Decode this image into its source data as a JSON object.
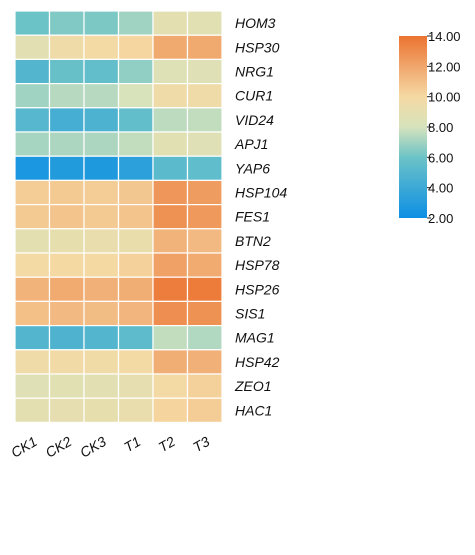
{
  "chart_data": {
    "type": "heatmap",
    "title": "",
    "xlabel": "",
    "ylabel": "",
    "columns": [
      "CK1",
      "CK2",
      "CK3",
      "T1",
      "T2",
      "T3"
    ],
    "rows": [
      "HOM3",
      "HSP30",
      "NRG1",
      "CUR1",
      "VID24",
      "APJ1",
      "YAP6",
      "HSP104",
      "FES1",
      "BTN2",
      "HSP78",
      "HSP26",
      "SIS1",
      "MAG1",
      "HSP42",
      "ZEO1",
      "HAC1"
    ],
    "values": [
      [
        6.0,
        6.4,
        6.3,
        7.0,
        8.9,
        8.7
      ],
      [
        8.8,
        9.6,
        9.9,
        10.1,
        11.9,
        11.9
      ],
      [
        5.0,
        5.8,
        5.6,
        6.7,
        8.5,
        8.6
      ],
      [
        7.0,
        7.4,
        7.4,
        8.1,
        9.6,
        9.6
      ],
      [
        5.1,
        4.4,
        4.7,
        5.6,
        7.5,
        7.6
      ],
      [
        7.1,
        7.2,
        7.2,
        7.6,
        8.7,
        8.6
      ],
      [
        2.6,
        2.9,
        2.8,
        3.3,
        5.3,
        5.5
      ],
      [
        10.5,
        10.6,
        10.5,
        10.7,
        12.6,
        12.4
      ],
      [
        10.6,
        10.8,
        10.6,
        10.8,
        12.8,
        12.5
      ],
      [
        8.9,
        9.1,
        9.2,
        9.3,
        11.5,
        11.2
      ],
      [
        9.9,
        10.0,
        10.0,
        10.3,
        12.2,
        11.8
      ],
      [
        11.5,
        11.8,
        11.6,
        11.7,
        13.6,
        13.7
      ],
      [
        11.0,
        11.2,
        11.1,
        11.4,
        12.9,
        12.8
      ],
      [
        5.0,
        4.8,
        5.0,
        5.4,
        7.6,
        7.3
      ],
      [
        9.6,
        9.8,
        9.7,
        9.9,
        11.7,
        11.6
      ],
      [
        8.6,
        8.7,
        8.8,
        9.0,
        9.9,
        10.3
      ],
      [
        8.9,
        9.0,
        9.1,
        9.2,
        10.2,
        10.5
      ]
    ],
    "colorbar": {
      "min": 2.0,
      "max": 14.0,
      "ticks": [
        "14.00",
        "12.00",
        "10.00",
        "8.00",
        "6.00",
        "4.00",
        "2.00"
      ],
      "stops": [
        {
          "value": 2.0,
          "color": "#0c8fe4"
        },
        {
          "value": 6.0,
          "color": "#6cc3c7"
        },
        {
          "value": 8.0,
          "color": "#d6e3bc"
        },
        {
          "value": 10.0,
          "color": "#f5d9a3"
        },
        {
          "value": 12.0,
          "color": "#f0a66c"
        },
        {
          "value": 14.0,
          "color": "#ec7330"
        }
      ],
      "position": "right"
    },
    "grid_color": "#ffffff"
  }
}
